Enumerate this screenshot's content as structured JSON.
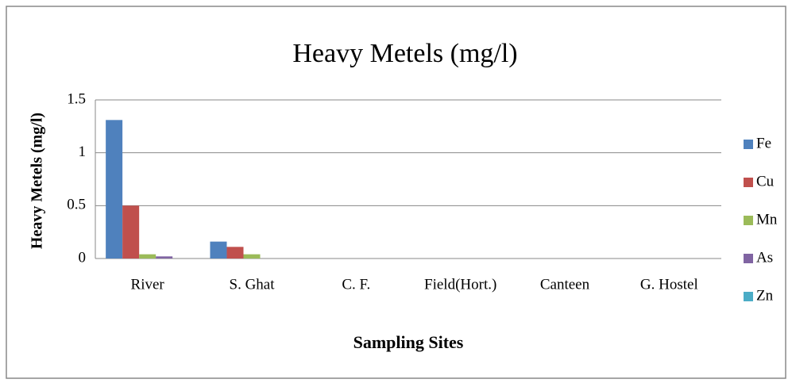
{
  "chart_data": {
    "type": "bar",
    "title": "Heavy Metels (mg/l)",
    "x_label": "Sampling Sites",
    "y_label": "Heavy Metels (mg/l)",
    "categories": [
      "River",
      "S. Ghat",
      "C. F.",
      "Field(Hort.)",
      "Canteen",
      "G. Hostel"
    ],
    "series": [
      {
        "name": "Fe",
        "color": "#4f81bd",
        "values": [
          1.31,
          0.16,
          0,
          0,
          0,
          0
        ]
      },
      {
        "name": "Cu",
        "color": "#c0504d",
        "values": [
          0.5,
          0.11,
          0,
          0,
          0,
          0
        ]
      },
      {
        "name": "Mn",
        "color": "#9bbb59",
        "values": [
          0.04,
          0.04,
          0,
          0,
          0,
          0
        ]
      },
      {
        "name": "As",
        "color": "#8064a2",
        "values": [
          0.02,
          0,
          0,
          0,
          0,
          0
        ]
      },
      {
        "name": "Zn",
        "color": "#4bacc6",
        "values": [
          0,
          0,
          0,
          0,
          0,
          0
        ]
      }
    ],
    "ylim": [
      0,
      1.5
    ],
    "yticks": [
      0,
      0.5,
      1,
      1.5
    ],
    "grid": true,
    "legend": "right"
  }
}
